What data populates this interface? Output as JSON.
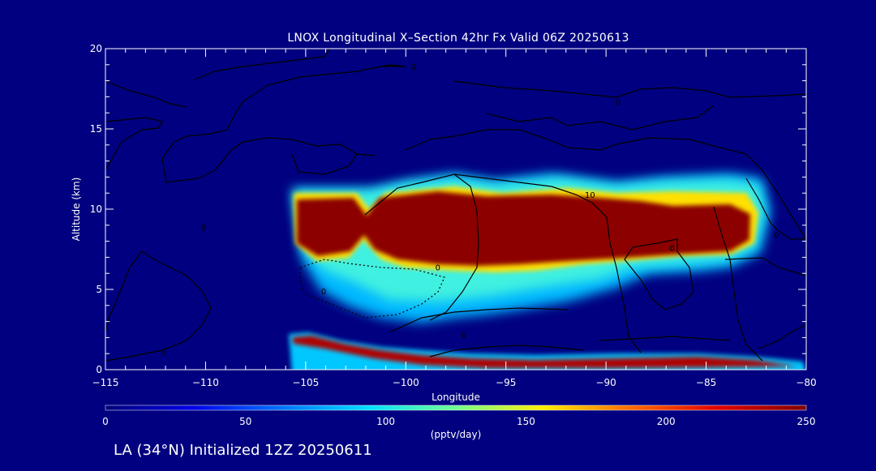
{
  "chart_data": {
    "type": "heatmap",
    "title": "LNOX Longitudinal X–Section 42hr  Fx Valid 06Z 20250613",
    "xlabel": "Longitude",
    "ylabel": "Altitude (km)",
    "xlim": [
      -115,
      -80
    ],
    "ylim": [
      0,
      20
    ],
    "x_ticks": [
      -115,
      -110,
      -105,
      -100,
      -95,
      -90,
      -85,
      -80
    ],
    "x_tick_labels": [
      "−115",
      "−110",
      "−105",
      "−100",
      "−95",
      "−90",
      "−85",
      "−80"
    ],
    "y_ticks": [
      0,
      5,
      10,
      15,
      20
    ],
    "y_tick_labels": [
      "0",
      "5",
      "10",
      "15",
      "20"
    ],
    "colorbar": {
      "label": "(pptv/day)",
      "min": 0,
      "max": 250,
      "ticks": [
        0,
        50,
        100,
        150,
        200,
        250
      ],
      "tick_labels": [
        "0",
        "50",
        "100",
        "150",
        "200",
        "250"
      ],
      "colors": [
        "#00007a",
        "#0000e6",
        "#0072ff",
        "#00e0ff",
        "#70ff90",
        "#ffee00",
        "#ff6a00",
        "#e00000",
        "#800000"
      ]
    },
    "field": {
      "description_units": "pptv/day",
      "upper_band": {
        "lon_start": -105.5,
        "lon_end": -81.5,
        "core_altitude_km": [
          7,
          10.5
        ],
        "peak_value": 250
      },
      "surface_band": {
        "lon_start": -105.8,
        "lon_end": -80.5,
        "altitude_km": [
          0.3,
          2
        ],
        "peak_value": 250
      }
    },
    "contour_labels": [
      {
        "text": "10",
        "lon": -90.8,
        "alt": 10.9
      },
      {
        "text": "0",
        "lon": -86.7,
        "alt": 7.6
      },
      {
        "text": "0",
        "lon": -81.5,
        "alt": 8.4
      },
      {
        "text": "0",
        "lon": -98.4,
        "alt": 6.4
      },
      {
        "text": "0",
        "lon": -97.1,
        "alt": 2.2
      },
      {
        "text": "0",
        "lon": -110.1,
        "alt": 8.9
      },
      {
        "text": "0",
        "lon": -112.1,
        "alt": 1.1
      },
      {
        "text": "0",
        "lon": -99.6,
        "alt": 18.9
      },
      {
        "text": "0",
        "lon": -89.4,
        "alt": 16.7
      },
      {
        "text": "0",
        "lon": -104.1,
        "alt": 4.9
      }
    ]
  },
  "footer": {
    "label": "LA (34°N) Initialized 12Z 20250611"
  }
}
